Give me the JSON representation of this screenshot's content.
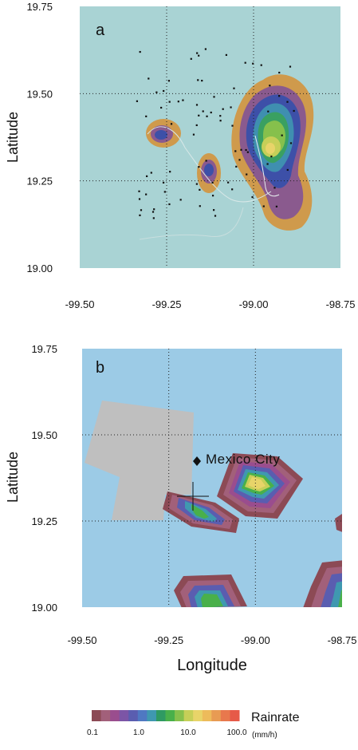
{
  "chart_data": [
    {
      "type": "heatmap",
      "panel_label": "a",
      "ylabel": "Latitude",
      "xlim": [
        -99.5,
        -98.75
      ],
      "ylim": [
        19.0,
        19.75
      ],
      "x_ticks": [
        "-99.50",
        "-99.25",
        "-99.00",
        "-98.75"
      ],
      "y_ticks": [
        "19.00",
        "19.25",
        "19.50",
        "19.75"
      ],
      "grid": true,
      "background": "#a9d3d4",
      "rain_cells": [
        {
          "lon": -98.95,
          "lat": 19.33,
          "peak_rate": 25
        },
        {
          "lon": -99.27,
          "lat": 19.38,
          "peak_rate": 1
        },
        {
          "lon": -99.12,
          "lat": 19.28,
          "peak_rate": 1
        },
        {
          "lon": -98.9,
          "lat": 19.2,
          "peak_rate": 0.5
        }
      ]
    },
    {
      "type": "heatmap",
      "panel_label": "b",
      "xlabel": "Longitude",
      "ylabel": "Latitude",
      "xlim": [
        -99.5,
        -98.75
      ],
      "ylim": [
        19.0,
        19.75
      ],
      "x_ticks": [
        "-99.50",
        "-99.25",
        "-99.00",
        "-98.75"
      ],
      "y_ticks": [
        "19.00",
        "19.25",
        "19.50",
        "19.75"
      ],
      "grid": true,
      "background": "#9ccbe6",
      "city": {
        "name": "Mexico City",
        "lon": -99.15,
        "lat": 19.42
      },
      "rain_cells": [
        {
          "lon": -99.0,
          "lat": 19.38,
          "peak_rate": 15
        },
        {
          "lon": -99.17,
          "lat": 19.29,
          "peak_rate": 3
        },
        {
          "lon": -99.13,
          "lat": 19.03,
          "peak_rate": 4
        },
        {
          "lon": -98.78,
          "lat": 19.06,
          "peak_rate": 3
        }
      ]
    }
  ],
  "colorbar": {
    "title": "Rainrate",
    "unit": "(mm/h)",
    "tick_labels": [
      "0.1",
      "1.0",
      "10.0",
      "100.0"
    ],
    "colors": [
      "#8c4a55",
      "#a2607a",
      "#9a4d8e",
      "#7c55a6",
      "#5a5db0",
      "#4f78c2",
      "#3f98b0",
      "#2f9a62",
      "#49b04a",
      "#86c04c",
      "#c6cf58",
      "#e8d469",
      "#edbb5b",
      "#e89b53",
      "#e8784d",
      "#e65a48"
    ]
  }
}
